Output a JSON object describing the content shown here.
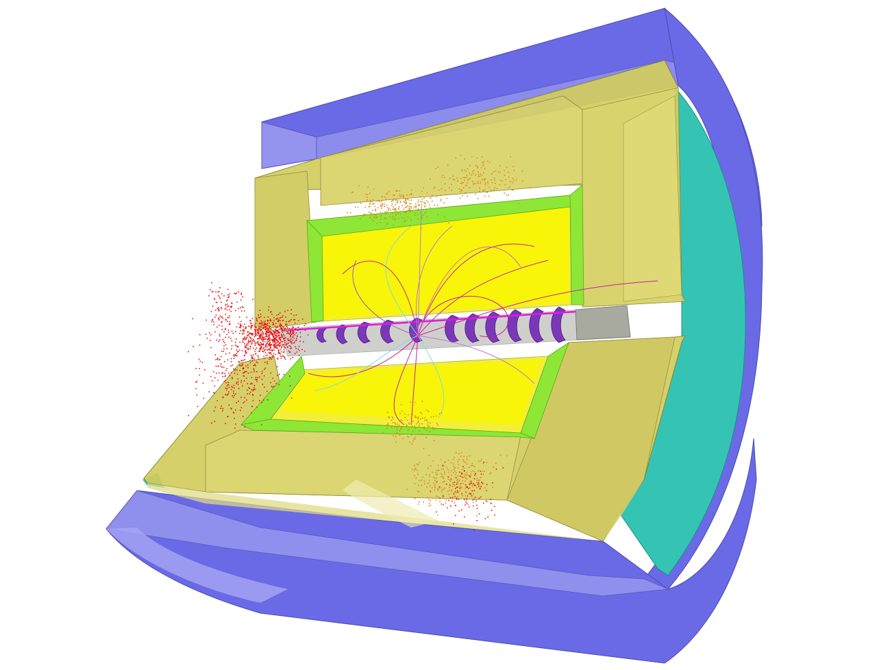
{
  "scene": {
    "description_visible_text": "",
    "colors": {
      "outer_yoke": "#6a6ae6",
      "outer_yoke_light": "#9494ee",
      "endcap_teal": "#35c4b4",
      "calorimeter_olive": "#d2cc5c",
      "calorimeter_light": "#e0db86",
      "inner_volume_yellow": "#f2ee3a",
      "inner_core": "#faf600",
      "frame_green": "#8ee636",
      "beampipe_grey": "#a8aaa0",
      "ring_purple": "#7a38b8",
      "hits_red": "#e31414",
      "hits_orange": "#d98a1a",
      "tracks_magenta": "#cc1aa8",
      "tracks_cyan": "#7fd8e8"
    }
  }
}
